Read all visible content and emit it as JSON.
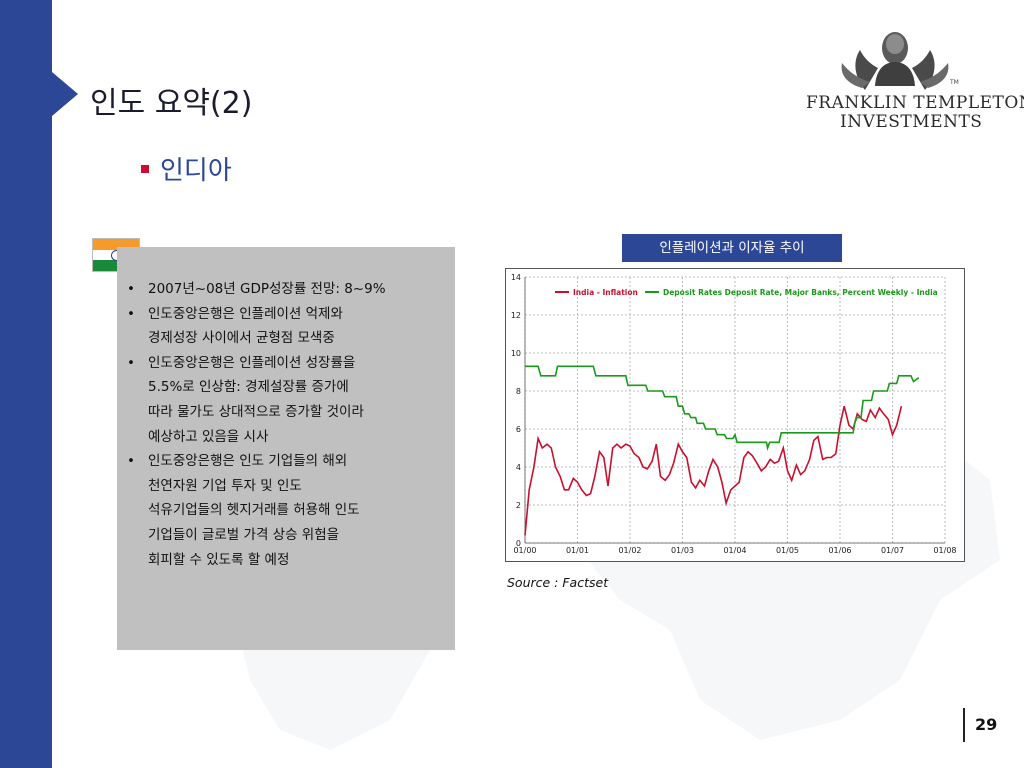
{
  "slide": {
    "title": "인도 요약(2)",
    "section_heading": "인디아",
    "page_number": "29"
  },
  "logo": {
    "line1": "FRANKLIN TEMPLETON",
    "line2": "INVESTMENTS"
  },
  "bullets": [
    [
      "2007년~08년 GDP성장률 전망: 8~9%"
    ],
    [
      "인도중앙은행은 인플레이션 억제와",
      "경제성장 사이에서 균형점 모색중"
    ],
    [
      "인도중앙은행은 인플레이션 성장률을",
      "5.5%로 인상함: 경제설장률 증가에",
      "따라 물가도 상대적으로 증가할 것이라",
      "예상하고 있음을 시사"
    ],
    [
      "인도중앙은행은 인도 기업들의 해외",
      "천연자원 기업 투자 및 인도",
      "석유기업들의 헷지거래를 허용해 인도",
      "기업들이 글로벌 가격 상승 위험을",
      "회피할 수 있도록 할 예정"
    ]
  ],
  "chart_title": "인플레이션과 이자율 추이",
  "source": "Source : Factset",
  "chart_data": {
    "type": "line",
    "title": "인플레이션과 이자율 추이",
    "xlabel": "",
    "ylabel": "",
    "x_ticks": [
      "01/00",
      "01/01",
      "01/02",
      "01/03",
      "01/04",
      "01/05",
      "01/06",
      "01/07",
      "01/08"
    ],
    "ylim": [
      0,
      14
    ],
    "y_ticks": [
      0,
      2,
      4,
      6,
      8,
      10,
      12,
      14
    ],
    "grid": true,
    "legend_position": "top",
    "series": [
      {
        "name": "India - Inflation",
        "color": "#c8102e",
        "points": [
          [
            0.0,
            0.4
          ],
          [
            0.08,
            2.8
          ],
          [
            0.17,
            4.0
          ],
          [
            0.25,
            5.5
          ],
          [
            0.33,
            5.0
          ],
          [
            0.42,
            5.2
          ],
          [
            0.5,
            5.0
          ],
          [
            0.58,
            4.0
          ],
          [
            0.67,
            3.5
          ],
          [
            0.75,
            2.8
          ],
          [
            0.83,
            2.8
          ],
          [
            0.92,
            3.4
          ],
          [
            1.0,
            3.2
          ],
          [
            1.08,
            2.8
          ],
          [
            1.17,
            2.5
          ],
          [
            1.25,
            2.6
          ],
          [
            1.33,
            3.5
          ],
          [
            1.42,
            4.8
          ],
          [
            1.5,
            4.5
          ],
          [
            1.58,
            3.0
          ],
          [
            1.67,
            5.0
          ],
          [
            1.75,
            5.2
          ],
          [
            1.83,
            5.0
          ],
          [
            1.92,
            5.2
          ],
          [
            2.0,
            5.1
          ],
          [
            2.08,
            4.7
          ],
          [
            2.17,
            4.5
          ],
          [
            2.25,
            4.0
          ],
          [
            2.33,
            3.9
          ],
          [
            2.42,
            4.3
          ],
          [
            2.5,
            5.2
          ],
          [
            2.58,
            3.5
          ],
          [
            2.67,
            3.3
          ],
          [
            2.75,
            3.6
          ],
          [
            2.83,
            4.2
          ],
          [
            2.92,
            5.2
          ],
          [
            3.0,
            4.8
          ],
          [
            3.08,
            4.5
          ],
          [
            3.17,
            3.2
          ],
          [
            3.25,
            2.9
          ],
          [
            3.33,
            3.3
          ],
          [
            3.42,
            3.0
          ],
          [
            3.5,
            3.8
          ],
          [
            3.58,
            4.4
          ],
          [
            3.67,
            4.0
          ],
          [
            3.75,
            3.2
          ],
          [
            3.83,
            2.1
          ],
          [
            3.92,
            2.8
          ],
          [
            4.0,
            3.0
          ],
          [
            4.08,
            3.2
          ],
          [
            4.17,
            4.5
          ],
          [
            4.25,
            4.8
          ],
          [
            4.33,
            4.6
          ],
          [
            4.42,
            4.2
          ],
          [
            4.5,
            3.8
          ],
          [
            4.58,
            4.0
          ],
          [
            4.67,
            4.4
          ],
          [
            4.75,
            4.2
          ],
          [
            4.83,
            4.3
          ],
          [
            4.92,
            5.0
          ],
          [
            5.0,
            3.8
          ],
          [
            5.08,
            3.3
          ],
          [
            5.17,
            4.1
          ],
          [
            5.25,
            3.6
          ],
          [
            5.33,
            3.8
          ],
          [
            5.42,
            4.4
          ],
          [
            5.5,
            5.4
          ],
          [
            5.58,
            5.6
          ],
          [
            5.67,
            4.4
          ],
          [
            5.75,
            4.5
          ],
          [
            5.83,
            4.5
          ],
          [
            5.92,
            4.7
          ],
          [
            6.0,
            6.2
          ],
          [
            6.08,
            7.2
          ],
          [
            6.17,
            6.2
          ],
          [
            6.25,
            6.0
          ],
          [
            6.33,
            6.8
          ],
          [
            6.42,
            6.5
          ],
          [
            6.5,
            6.4
          ],
          [
            6.58,
            7.0
          ],
          [
            6.67,
            6.6
          ],
          [
            6.75,
            7.1
          ],
          [
            6.83,
            6.8
          ],
          [
            6.92,
            6.5
          ],
          [
            7.0,
            5.7
          ],
          [
            7.08,
            6.2
          ],
          [
            7.17,
            7.2
          ]
        ]
      },
      {
        "name": "Deposit Rates Deposit Rate, Major Banks, Percent Weekly - India",
        "color": "#1a9a1a",
        "points": [
          [
            0.0,
            9.3
          ],
          [
            0.25,
            9.3
          ],
          [
            0.3,
            8.8
          ],
          [
            0.58,
            8.8
          ],
          [
            0.62,
            9.3
          ],
          [
            1.3,
            9.3
          ],
          [
            1.35,
            8.8
          ],
          [
            1.92,
            8.8
          ],
          [
            1.96,
            8.3
          ],
          [
            2.3,
            8.3
          ],
          [
            2.34,
            8.0
          ],
          [
            2.62,
            8.0
          ],
          [
            2.66,
            7.7
          ],
          [
            2.88,
            7.7
          ],
          [
            2.92,
            7.2
          ],
          [
            3.0,
            7.2
          ],
          [
            3.04,
            6.8
          ],
          [
            3.12,
            6.8
          ],
          [
            3.16,
            6.6
          ],
          [
            3.25,
            6.6
          ],
          [
            3.28,
            6.3
          ],
          [
            3.4,
            6.3
          ],
          [
            3.44,
            6.0
          ],
          [
            3.62,
            6.0
          ],
          [
            3.66,
            5.7
          ],
          [
            3.8,
            5.7
          ],
          [
            3.84,
            5.5
          ],
          [
            3.96,
            5.5
          ],
          [
            4.0,
            5.7
          ],
          [
            4.04,
            5.3
          ],
          [
            4.6,
            5.3
          ],
          [
            4.62,
            5.0
          ],
          [
            4.66,
            5.3
          ],
          [
            4.84,
            5.3
          ],
          [
            4.88,
            5.8
          ],
          [
            6.25,
            5.8
          ],
          [
            6.28,
            6.3
          ],
          [
            6.32,
            6.6
          ],
          [
            6.4,
            6.6
          ],
          [
            6.44,
            7.5
          ],
          [
            6.6,
            7.5
          ],
          [
            6.64,
            8.0
          ],
          [
            6.9,
            8.0
          ],
          [
            6.94,
            8.4
          ],
          [
            7.08,
            8.4
          ],
          [
            7.12,
            8.8
          ],
          [
            7.35,
            8.8
          ],
          [
            7.4,
            8.5
          ],
          [
            7.5,
            8.7
          ]
        ]
      }
    ]
  }
}
